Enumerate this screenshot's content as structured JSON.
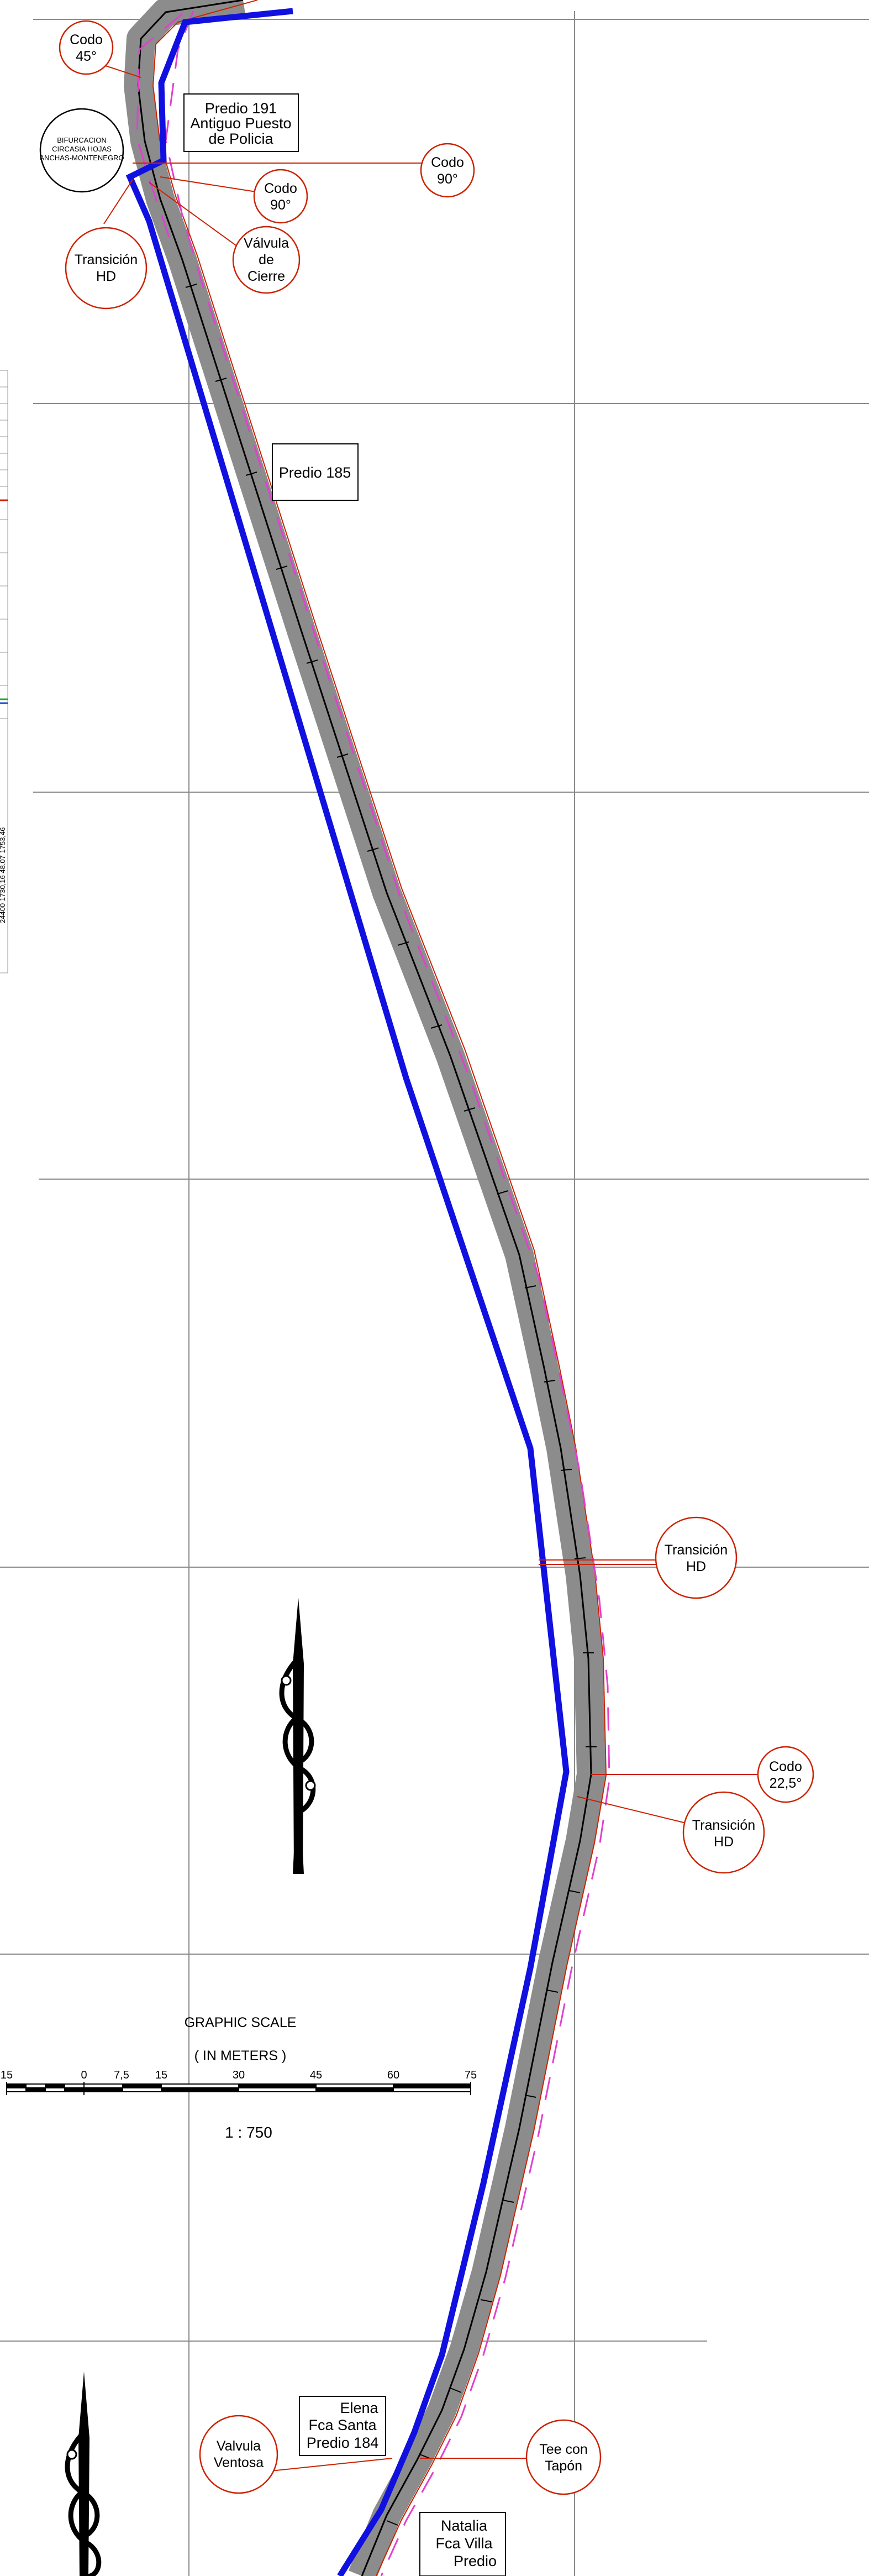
{
  "colors": {
    "grid": "#8a8a8a",
    "pipe_band": "#8c8c8c",
    "centerline": "#000000",
    "blue_route": "#1010e0",
    "offset_dashes": "#e040d0",
    "callout": "#cc2200",
    "edge_line": "#cc2200"
  },
  "callouts": {
    "codo45": [
      "Codo",
      "45°"
    ],
    "codo90a": [
      "Codo",
      "90°"
    ],
    "codo90b": [
      "Codo",
      "90°"
    ],
    "valvula_cierre": [
      "Válvula",
      "de",
      "Cierre"
    ],
    "transicion_top": [
      "Transición",
      "HD"
    ],
    "transicion_mid": [
      "Transición",
      "HD"
    ],
    "codo225": [
      "Codo",
      "22,5°"
    ],
    "transicion_low": [
      "Transición",
      "HD"
    ],
    "valvula_ventosa": [
      "Valvula",
      "Ventosa"
    ],
    "tee_tapon": [
      "Tee con",
      "Tapón"
    ]
  },
  "bifurcation": [
    "BIFURCACION",
    "CIRCASIA HOJAS",
    "ANCHAS-MONTENEGRO"
  ],
  "labels": {
    "predio191": [
      "Predio 191",
      "Antiguo Puesto",
      "de Policia"
    ],
    "predio185": "Predio 185",
    "predio184": [
      "Elena",
      "Fca Santa",
      "Predio 184"
    ],
    "natalia": [
      "Natalia",
      "Fca Villa",
      "Predio"
    ]
  },
  "scale": {
    "title": "GRAPHIC SCALE",
    "unit": "( IN METERS )",
    "ticks": [
      "15",
      "0",
      "7,5",
      "15",
      "30",
      "45",
      "60",
      "75"
    ],
    "ratio": "1 :   750"
  },
  "side_profile_text": "24400   1730,16   48.07   1753,46"
}
